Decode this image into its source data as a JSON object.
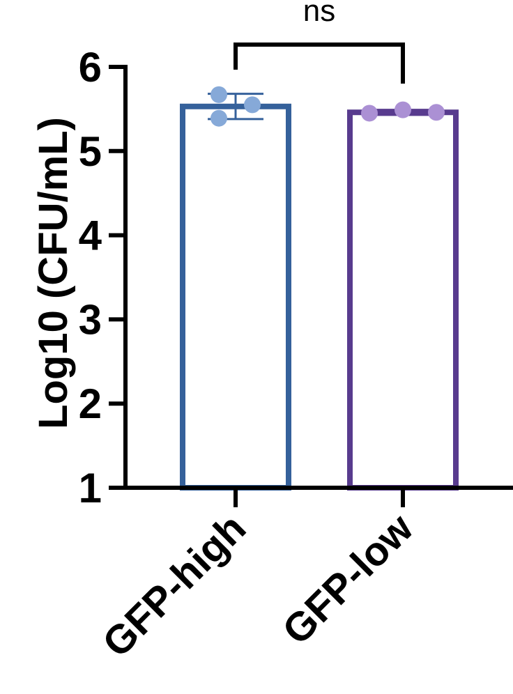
{
  "chart_data": {
    "type": "bar",
    "title": "",
    "xlabel": "",
    "ylabel": "Log10 (CFU/mL)",
    "ylim": [
      1,
      6
    ],
    "yticks": [
      "1",
      "2",
      "3",
      "4",
      "5",
      "6"
    ],
    "grid": false,
    "legend": "none",
    "categories": [
      "GFP-high",
      "GFP-low"
    ],
    "values": [
      5.53,
      5.46
    ],
    "error": [
      0.15,
      0.03
    ],
    "points": [
      [
        5.67,
        5.39,
        5.55
      ],
      [
        5.45,
        5.49,
        5.46
      ]
    ],
    "colors": {
      "bar_outline": [
        "#35619b",
        "#583b8e"
      ],
      "points": [
        "#86a9d8",
        "#ab90d4"
      ],
      "axis": "#000000"
    },
    "significance": {
      "label": "ns",
      "between": [
        "GFP-high",
        "GFP-low"
      ]
    }
  }
}
